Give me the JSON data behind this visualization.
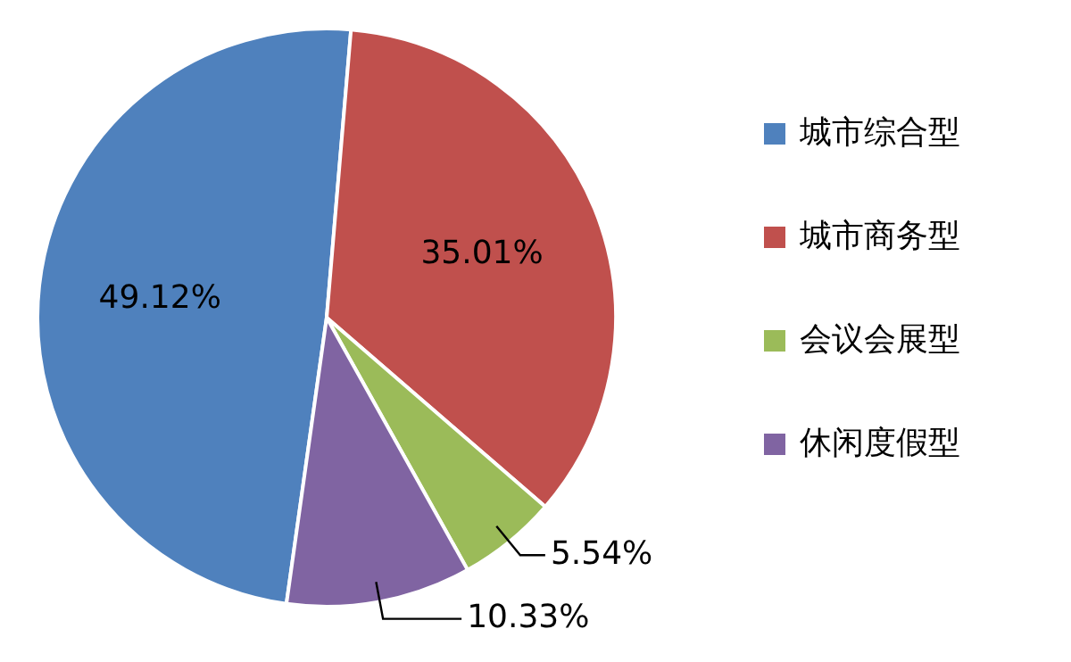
{
  "chart_data": {
    "type": "pie",
    "categories": [
      "城市综合型",
      "城市商务型",
      "会议会展型",
      "休闲度假型"
    ],
    "values": [
      49.12,
      35.01,
      5.54,
      10.33
    ],
    "colors": [
      "#4f81bd",
      "#c0504d",
      "#9bbb59",
      "#8064a2"
    ],
    "value_labels": [
      "49.12%",
      "35.01%",
      "5.54%",
      "10.33%"
    ],
    "legend": "right"
  }
}
